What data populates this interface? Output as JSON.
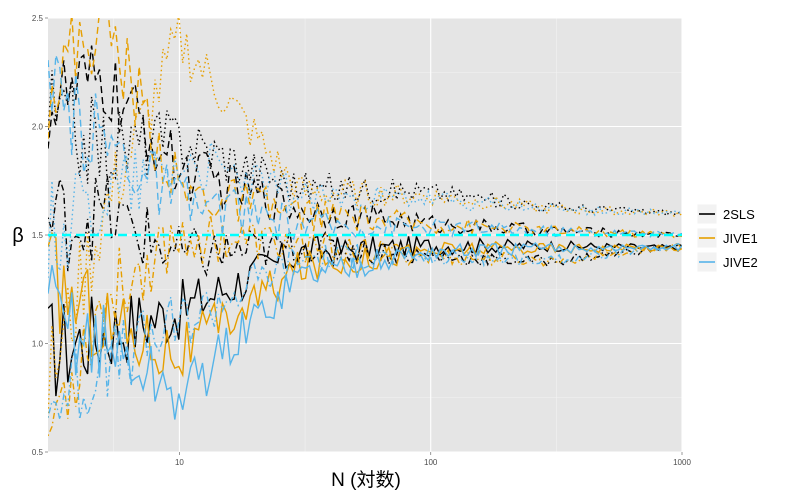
{
  "chart_data": {
    "type": "line",
    "xlabel": "N (対数)",
    "ylabel": "β",
    "xscale": "log",
    "xlim": [
      3,
      1000
    ],
    "ylim": [
      0.5,
      2.5
    ],
    "x_ticks": [
      10,
      100,
      1000
    ],
    "x_tick_labels": [
      "10",
      "100",
      "1000"
    ],
    "y_ticks": [
      0.5,
      1.0,
      1.5,
      2.0,
      2.5
    ],
    "y_tick_labels": [
      "0.5",
      "1.0",
      "1.5",
      "2.0",
      "2.5"
    ],
    "grid": true,
    "legend": {
      "position": "right",
      "entries": [
        "2SLS",
        "JIVE1",
        "JIVE2"
      ]
    },
    "colors": {
      "2SLS": "#000000",
      "JIVE1": "#E69F00",
      "JIVE2": "#56B4E9",
      "true_value": "#00FFFF",
      "panel": "#E5E5E5"
    },
    "true_value": 1.5,
    "linetypes": [
      "solid",
      "dashed",
      "dotted",
      "dotdash"
    ],
    "series": [
      {
        "estimator": "2SLS",
        "linetype": "solid",
        "x": [
          3,
          5,
          10,
          30,
          100,
          300,
          1000
        ],
        "values": [
          0.96,
          1.05,
          1.15,
          1.42,
          1.45,
          1.45,
          1.44
        ]
      },
      {
        "estimator": "2SLS",
        "linetype": "dashed",
        "x": [
          3,
          5,
          10,
          30,
          100,
          300,
          1000
        ],
        "values": [
          2.1,
          2.2,
          1.8,
          1.62,
          1.55,
          1.52,
          1.5
        ]
      },
      {
        "estimator": "2SLS",
        "linetype": "dotted",
        "x": [
          3,
          5,
          10,
          30,
          100,
          300,
          1000
        ],
        "values": [
          2.05,
          1.9,
          1.95,
          1.72,
          1.7,
          1.63,
          1.6
        ]
      },
      {
        "estimator": "2SLS",
        "linetype": "dotdash",
        "x": [
          3,
          5,
          10,
          30,
          100,
          300,
          1000
        ],
        "values": [
          1.55,
          1.6,
          1.4,
          1.45,
          1.4,
          1.38,
          1.45
        ]
      },
      {
        "estimator": "JIVE1",
        "linetype": "solid",
        "x": [
          3,
          5,
          10,
          30,
          100,
          300,
          1000
        ],
        "values": [
          1.3,
          1.1,
          0.95,
          1.35,
          1.43,
          1.44,
          1.44
        ]
      },
      {
        "estimator": "JIVE1",
        "linetype": "dashed",
        "x": [
          3,
          5,
          10,
          30,
          100,
          300,
          1000
        ],
        "values": [
          2.2,
          2.5,
          1.7,
          1.6,
          1.55,
          1.52,
          1.5
        ]
      },
      {
        "estimator": "JIVE1",
        "linetype": "dotted",
        "x": [
          3,
          5,
          10,
          30,
          100,
          300,
          1000
        ],
        "values": [
          0.8,
          1.6,
          2.4,
          1.7,
          1.68,
          1.62,
          1.6
        ]
      },
      {
        "estimator": "JIVE1",
        "linetype": "dotdash",
        "x": [
          3,
          5,
          10,
          30,
          100,
          300,
          1000
        ],
        "values": [
          0.6,
          1.2,
          1.5,
          1.45,
          1.4,
          1.38,
          1.45
        ]
      },
      {
        "estimator": "JIVE2",
        "linetype": "solid",
        "x": [
          3,
          5,
          10,
          30,
          100,
          300,
          1000
        ],
        "values": [
          1.14,
          1.0,
          0.75,
          1.32,
          1.42,
          1.44,
          1.44
        ]
      },
      {
        "estimator": "JIVE2",
        "linetype": "dashed",
        "x": [
          3,
          5,
          10,
          30,
          100,
          300,
          1000
        ],
        "values": [
          2.1,
          1.95,
          1.65,
          1.55,
          1.54,
          1.52,
          1.5
        ]
      },
      {
        "estimator": "JIVE2",
        "linetype": "dotted",
        "x": [
          3,
          5,
          10,
          30,
          100,
          300,
          1000
        ],
        "values": [
          1.5,
          1.7,
          1.85,
          1.68,
          1.66,
          1.62,
          1.6
        ]
      },
      {
        "estimator": "JIVE2",
        "linetype": "dotdash",
        "x": [
          3,
          5,
          10,
          30,
          100,
          300,
          1000
        ],
        "values": [
          0.74,
          0.9,
          1.1,
          1.4,
          1.4,
          1.38,
          1.45
        ]
      }
    ]
  }
}
